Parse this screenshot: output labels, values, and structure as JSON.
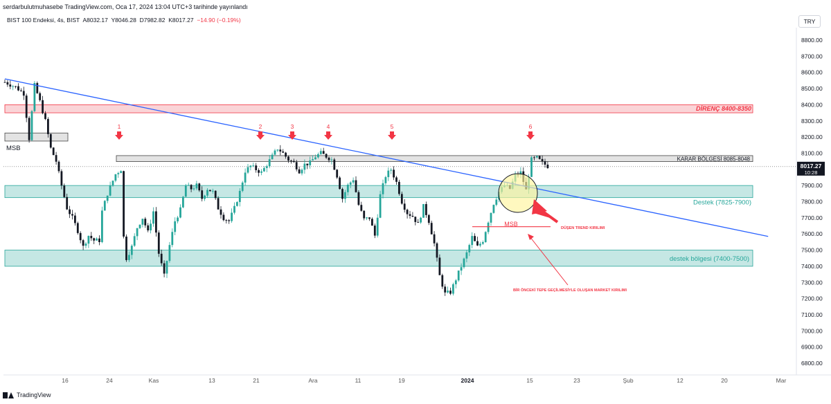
{
  "header": {
    "publisher_line": "serdarbulutmuhasebe TradingView.com, Oca 17, 2024 13:04 UTC+3 tarihinde yayınlandı"
  },
  "symbol": {
    "name": "BIST 100 Endeksi, 4s, BIST",
    "open": "A8032.17",
    "high": "Y8046.28",
    "low": "D7982.82",
    "close": "K8017.27",
    "change": "−14.90 (−0.19%)"
  },
  "currency_button": "TRY",
  "footer": {
    "brand": "TradingView"
  },
  "colors": {
    "up": "#26a69a",
    "down": "#131722",
    "trend": "#2962ff",
    "red": "#f23645",
    "support_fill": "#b2dfdb",
    "resistance_fill": "#f8c6c9",
    "decision_fill": "#d9d9d9"
  },
  "chart_data": {
    "type": "candlestick",
    "ylim": [
      6750,
      8950
    ],
    "y_ticks": [
      "8800.00",
      "8700.00",
      "8600.00",
      "8500.00",
      "8400.00",
      "8300.00",
      "8200.00",
      "8100.00",
      "8000.00",
      "7900.00",
      "7800.00",
      "7700.00",
      "7600.00",
      "7500.00",
      "7400.00",
      "7300.00",
      "7200.00",
      "7100.00",
      "7000.00",
      "6900.00",
      "6800.00"
    ],
    "x_ticks": [
      "16",
      "24",
      "Kas",
      "13",
      "21",
      "Ara",
      "11",
      "19",
      "2024",
      "15",
      "23",
      "Şub",
      "12",
      "20",
      "Mar"
    ],
    "last_price": {
      "value": "8017.27",
      "countdown": "10:28"
    },
    "zones": [
      {
        "label": "DİRENÇ 8400-8350",
        "low": 8350,
        "high": 8400
      },
      {
        "label": "KARAR BÖLGESİ 8085-8048",
        "low": 8048,
        "high": 8085
      },
      {
        "label": "Destek (7825-7900)",
        "low": 7825,
        "high": 7900
      },
      {
        "label": "destek bölgesi (7400-7500)",
        "low": 7400,
        "high": 7500
      },
      {
        "label": "MSB",
        "low": 8175,
        "high": 8225
      }
    ],
    "trendline": {
      "start": {
        "x": 0,
        "y": 8560
      },
      "end": {
        "x": 198,
        "y": 7520
      }
    },
    "tops": [
      "1",
      "2",
      "3",
      "4",
      "5",
      "6"
    ],
    "annotations": {
      "trend_break": "DÜŞEN TREND KIRILIMI",
      "market_break": "BİR ÖNCEKİ TEPE GEÇİLMESİYLE OLUŞAN MARKET KIRILIMI",
      "msb": "MSB"
    },
    "series_points": [
      [
        0,
        8540
      ],
      [
        4,
        8510
      ],
      [
        7,
        8470
      ],
      [
        9,
        8190
      ],
      [
        11,
        8520
      ],
      [
        13,
        8420
      ],
      [
        15,
        8300
      ],
      [
        17,
        8130
      ],
      [
        19,
        8050
      ],
      [
        21,
        7900
      ],
      [
        23,
        7760
      ],
      [
        25,
        7700
      ],
      [
        27,
        7620
      ],
      [
        29,
        7520
      ],
      [
        31,
        7590
      ],
      [
        33,
        7560
      ],
      [
        35,
        7560
      ],
      [
        36,
        7740
      ],
      [
        38,
        7850
      ],
      [
        41,
        7970
      ],
      [
        43,
        8000
      ],
      [
        44,
        7580
      ],
      [
        45,
        7450
      ],
      [
        47,
        7520
      ],
      [
        49,
        7640
      ],
      [
        51,
        7700
      ],
      [
        53,
        7610
      ],
      [
        55,
        7740
      ],
      [
        57,
        7480
      ],
      [
        59,
        7340
      ],
      [
        61,
        7530
      ],
      [
        63,
        7680
      ],
      [
        65,
        7750
      ],
      [
        67,
        7900
      ],
      [
        69,
        7880
      ],
      [
        71,
        7900
      ],
      [
        73,
        7820
      ],
      [
        75,
        7880
      ],
      [
        77,
        7860
      ],
      [
        79,
        7760
      ],
      [
        81,
        7700
      ],
      [
        83,
        7680
      ],
      [
        85,
        7760
      ],
      [
        87,
        7860
      ],
      [
        89,
        7990
      ],
      [
        91,
        8020
      ],
      [
        93,
        8000
      ],
      [
        95,
        7980
      ],
      [
        97,
        8030
      ],
      [
        99,
        8080
      ],
      [
        101,
        8130
      ],
      [
        103,
        8100
      ],
      [
        105,
        8060
      ],
      [
        107,
        8040
      ],
      [
        109,
        7990
      ],
      [
        111,
        8030
      ],
      [
        113,
        8040
      ],
      [
        115,
        8080
      ],
      [
        117,
        8100
      ],
      [
        119,
        8080
      ],
      [
        121,
        8060
      ],
      [
        123,
        7960
      ],
      [
        125,
        7820
      ],
      [
        127,
        7900
      ],
      [
        129,
        7940
      ],
      [
        131,
        7780
      ],
      [
        133,
        7690
      ],
      [
        135,
        7700
      ],
      [
        137,
        7590
      ],
      [
        139,
        7840
      ],
      [
        141,
        7960
      ],
      [
        143,
        8000
      ],
      [
        145,
        7920
      ],
      [
        147,
        7800
      ],
      [
        149,
        7730
      ],
      [
        151,
        7710
      ],
      [
        153,
        7660
      ],
      [
        155,
        7770
      ],
      [
        157,
        7680
      ],
      [
        159,
        7540
      ],
      [
        161,
        7340
      ],
      [
        163,
        7230
      ],
      [
        165,
        7240
      ],
      [
        167,
        7320
      ],
      [
        169,
        7400
      ],
      [
        171,
        7480
      ],
      [
        173,
        7580
      ],
      [
        175,
        7520
      ],
      [
        177,
        7560
      ],
      [
        179,
        7680
      ],
      [
        181,
        7790
      ],
      [
        183,
        7860
      ],
      [
        185,
        7900
      ],
      [
        187,
        7880
      ],
      [
        189,
        7960
      ],
      [
        191,
        7980
      ],
      [
        193,
        7870
      ],
      [
        195,
        8060
      ],
      [
        197,
        8070
      ],
      [
        199,
        8040
      ],
      [
        201,
        8020
      ]
    ]
  }
}
